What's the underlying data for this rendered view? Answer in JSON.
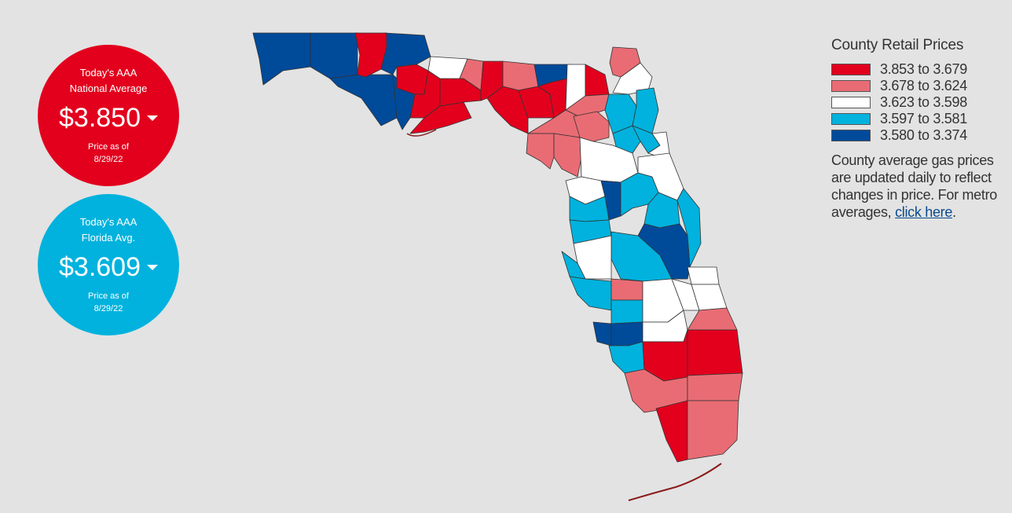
{
  "national": {
    "label_line1": "Today's AAA",
    "label_line2": "National Average",
    "price": "$3.850",
    "asof_line1": "Price as of",
    "asof_line2": "8/29/22",
    "color": "#e2001d"
  },
  "florida": {
    "label_line1": "Today's AAA",
    "label_line2": "Florida Avg.",
    "price": "$3.609",
    "asof_line1": "Price as of",
    "asof_line2": "8/29/22",
    "color": "#00b2dd"
  },
  "legend": {
    "title": "County Retail Prices",
    "items": [
      {
        "label": "3.853 to 3.679",
        "color": "#e2001d"
      },
      {
        "label": "3.678 to 3.624",
        "color": "#e96c74"
      },
      {
        "label": "3.623 to 3.598",
        "color": "#ffffff"
      },
      {
        "label": "3.597 to 3.581",
        "color": "#00b2dd"
      },
      {
        "label": "3.580 to 3.374",
        "color": "#004a9a"
      }
    ],
    "note_text": "County average gas prices are updated daily to reflect changes in price. For metro averages, ",
    "link_text": "click here",
    "note_end": "."
  }
}
